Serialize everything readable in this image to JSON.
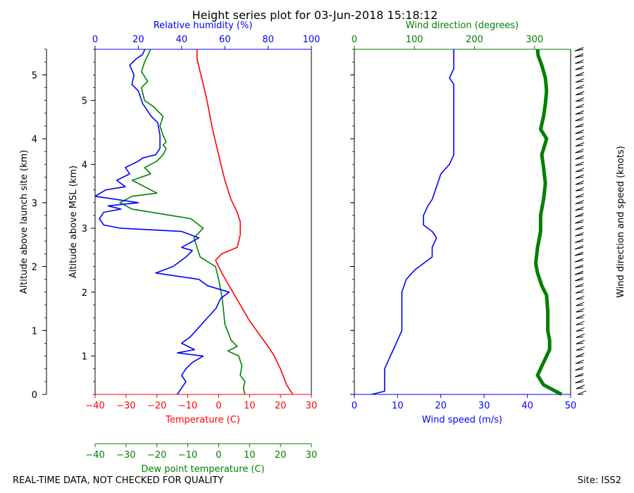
{
  "title": "Height series plot for 03-Jun-2018 15:18:12",
  "footer": {
    "left": "REAL-TIME DATA, NOT CHECKED FOR QUALITY",
    "right": "Site: ISS2"
  },
  "colors": {
    "temperature": "#ff0000",
    "dewpoint": "#008000",
    "humidity": "#0000ff",
    "wind_speed": "#0000ff",
    "wind_direction": "#008000",
    "barbs": "#000000"
  },
  "chart_data": [
    {
      "type": "line",
      "panel": "thermo",
      "axes": {
        "left_outer": {
          "label": "Altitude above launch site (km)",
          "range": [
            0,
            5.4
          ],
          "ticks": [
            0,
            1,
            2,
            3,
            4,
            5
          ],
          "tick_labels": [
            "0",
            "1",
            "2",
            "3",
            "4",
            "5"
          ]
        },
        "left_inner": {
          "label": "Altitude above MSL (km)",
          "range": [
            0.4,
            5.8
          ],
          "ticks": [
            1,
            2,
            3,
            4,
            5
          ],
          "tick_labels": [
            "1",
            "2",
            "3",
            "4",
            "5"
          ]
        },
        "bottom": {
          "label": "Temperature (C)",
          "range": [
            -40,
            30
          ],
          "ticks": [
            -40,
            -30,
            -20,
            -10,
            0,
            10,
            20,
            30
          ],
          "tick_labels": [
            "−40",
            "−30",
            "−20",
            "−10",
            "0",
            "10",
            "20",
            "30"
          ]
        },
        "bottom2": {
          "label": "Dew point temperature (C)",
          "range": [
            -40,
            30
          ],
          "ticks": [
            -40,
            -30,
            -20,
            -10,
            0,
            10,
            20,
            30
          ],
          "tick_labels": [
            "−40",
            "−30",
            "−20",
            "−10",
            "0",
            "10",
            "20",
            "30"
          ]
        },
        "top": {
          "label": "Relative humidity (%)",
          "range": [
            0,
            100
          ],
          "ticks": [
            0,
            20,
            40,
            60,
            80,
            100
          ],
          "tick_labels": [
            "0",
            "20",
            "40",
            "60",
            "80",
            "100"
          ]
        }
      },
      "series": [
        {
          "name": "Temperature",
          "axis": "temp",
          "points": [
            [
              24,
              0
            ],
            [
              22,
              0.15
            ],
            [
              20,
              0.4
            ],
            [
              18,
              0.6
            ],
            [
              16,
              0.75
            ],
            [
              13,
              0.95
            ],
            [
              10,
              1.15
            ],
            [
              7,
              1.4
            ],
            [
              4,
              1.65
            ],
            [
              1,
              1.9
            ],
            [
              -1,
              2.1
            ],
            [
              1,
              2.2
            ],
            [
              6,
              2.3
            ],
            [
              7,
              2.5
            ],
            [
              7,
              2.7
            ],
            [
              6,
              2.85
            ],
            [
              4,
              3.05
            ],
            [
              2,
              3.35
            ],
            [
              1,
              3.55
            ],
            [
              0,
              3.75
            ],
            [
              -1,
              3.95
            ],
            [
              -2,
              4.15
            ],
            [
              -3,
              4.4
            ],
            [
              -4,
              4.65
            ],
            [
              -5,
              4.85
            ],
            [
              -6,
              5.05
            ],
            [
              -7,
              5.25
            ],
            [
              -7,
              5.4
            ]
          ]
        },
        {
          "name": "Dew point temperature",
          "axis": "temp",
          "points": [
            [
              8.5,
              0
            ],
            [
              8,
              0.1
            ],
            [
              8.5,
              0.2
            ],
            [
              7,
              0.3
            ],
            [
              7.5,
              0.45
            ],
            [
              6.5,
              0.6
            ],
            [
              3,
              0.68
            ],
            [
              6,
              0.75
            ],
            [
              4,
              0.85
            ],
            [
              2,
              1.1
            ],
            [
              1.5,
              1.35
            ],
            [
              1,
              1.55
            ],
            [
              0,
              1.8
            ],
            [
              -1,
              2.0
            ],
            [
              -6,
              2.15
            ],
            [
              -7,
              2.3
            ],
            [
              -8,
              2.45
            ],
            [
              -5,
              2.6
            ],
            [
              -9,
              2.75
            ],
            [
              -28,
              2.9
            ],
            [
              -32,
              3.0
            ],
            [
              -28,
              3.1
            ],
            [
              -20,
              3.15
            ],
            [
              -24,
              3.25
            ],
            [
              -28,
              3.35
            ],
            [
              -22,
              3.45
            ],
            [
              -24,
              3.55
            ],
            [
              -20,
              3.65
            ],
            [
              -18,
              3.75
            ],
            [
              -17,
              3.85
            ],
            [
              -18,
              3.9
            ],
            [
              -17,
              3.95
            ],
            [
              -18,
              4.05
            ],
            [
              -19,
              4.2
            ],
            [
              -18,
              4.35
            ],
            [
              -21,
              4.5
            ],
            [
              -24,
              4.6
            ],
            [
              -25,
              4.8
            ],
            [
              -23,
              4.9
            ],
            [
              -25,
              5.05
            ],
            [
              -24,
              5.2
            ],
            [
              -23,
              5.3
            ],
            [
              -22,
              5.4
            ]
          ]
        },
        {
          "name": "Relative humidity",
          "axis": "rh",
          "points": [
            [
              38,
              0
            ],
            [
              40,
              0.1
            ],
            [
              42,
              0.2
            ],
            [
              40,
              0.3
            ],
            [
              42,
              0.4
            ],
            [
              45,
              0.5
            ],
            [
              50,
              0.6
            ],
            [
              38,
              0.65
            ],
            [
              46,
              0.7
            ],
            [
              40,
              0.8
            ],
            [
              44,
              0.9
            ],
            [
              48,
              1.05
            ],
            [
              52,
              1.2
            ],
            [
              56,
              1.35
            ],
            [
              58,
              1.5
            ],
            [
              62,
              1.6
            ],
            [
              52,
              1.7
            ],
            [
              48,
              1.8
            ],
            [
              28,
              1.9
            ],
            [
              36,
              2.0
            ],
            [
              42,
              2.15
            ],
            [
              45,
              2.25
            ],
            [
              40,
              2.3
            ],
            [
              48,
              2.45
            ],
            [
              40,
              2.55
            ],
            [
              12,
              2.6
            ],
            [
              4,
              2.65
            ],
            [
              2,
              2.75
            ],
            [
              4,
              2.85
            ],
            [
              12,
              2.9
            ],
            [
              6,
              2.95
            ],
            [
              20,
              3.0
            ],
            [
              0,
              3.1
            ],
            [
              5,
              3.2
            ],
            [
              14,
              3.25
            ],
            [
              10,
              3.35
            ],
            [
              16,
              3.45
            ],
            [
              14,
              3.55
            ],
            [
              20,
              3.65
            ],
            [
              22,
              3.7
            ],
            [
              28,
              3.75
            ],
            [
              30,
              3.85
            ],
            [
              30,
              4.05
            ],
            [
              29,
              4.25
            ],
            [
              26,
              4.35
            ],
            [
              24,
              4.45
            ],
            [
              22,
              4.55
            ],
            [
              20,
              4.75
            ],
            [
              17,
              4.85
            ],
            [
              18,
              5.0
            ],
            [
              16,
              5.15
            ],
            [
              19,
              5.25
            ],
            [
              22,
              5.32
            ],
            [
              23,
              5.4
            ]
          ]
        }
      ]
    },
    {
      "type": "line",
      "panel": "wind",
      "axes": {
        "bottom": {
          "label": "Wind speed (m/s)",
          "range": [
            0,
            50
          ],
          "ticks": [
            0,
            10,
            20,
            30,
            40,
            50
          ],
          "tick_labels": [
            "0",
            "10",
            "20",
            "30",
            "40",
            "50"
          ]
        },
        "top": {
          "label": "Wind direction (degrees)",
          "range": [
            0,
            360
          ],
          "ticks": [
            0,
            100,
            200,
            300
          ],
          "tick_labels": [
            "0",
            "100",
            "200",
            "300"
          ]
        },
        "right": {
          "label": "Wind direction and speed (knots)"
        }
      },
      "series": [
        {
          "name": "Wind speed",
          "axis": "ws",
          "points": [
            [
              4,
              0
            ],
            [
              7,
              0.05
            ],
            [
              7,
              0.15
            ],
            [
              7,
              0.4
            ],
            [
              8,
              0.55
            ],
            [
              9,
              0.7
            ],
            [
              10,
              0.85
            ],
            [
              11,
              1.0
            ],
            [
              11,
              1.3
            ],
            [
              11,
              1.6
            ],
            [
              12,
              1.8
            ],
            [
              14,
              1.95
            ],
            [
              16,
              2.05
            ],
            [
              18,
              2.15
            ],
            [
              18,
              2.3
            ],
            [
              19,
              2.45
            ],
            [
              18,
              2.55
            ],
            [
              16,
              2.65
            ],
            [
              16,
              2.8
            ],
            [
              17,
              2.95
            ],
            [
              18,
              3.05
            ],
            [
              19,
              3.25
            ],
            [
              20,
              3.45
            ],
            [
              22,
              3.6
            ],
            [
              23,
              3.75
            ],
            [
              23,
              3.9
            ],
            [
              23,
              4.1
            ],
            [
              23,
              4.3
            ],
            [
              23,
              4.5
            ],
            [
              23,
              4.7
            ],
            [
              23,
              4.85
            ],
            [
              22,
              4.95
            ],
            [
              23,
              5.1
            ],
            [
              23,
              5.3
            ],
            [
              23,
              5.4
            ]
          ]
        },
        {
          "name": "Wind direction",
          "axis": "wd",
          "points": [
            [
              345,
              0
            ],
            [
              335,
              0.05
            ],
            [
              315,
              0.15
            ],
            [
              305,
              0.3
            ],
            [
              315,
              0.5
            ],
            [
              325,
              0.7
            ],
            [
              325,
              0.85
            ],
            [
              322,
              1.0
            ],
            [
              322,
              1.3
            ],
            [
              320,
              1.55
            ],
            [
              312,
              1.7
            ],
            [
              305,
              1.9
            ],
            [
              302,
              2.05
            ],
            [
              305,
              2.3
            ],
            [
              310,
              2.55
            ],
            [
              310,
              2.8
            ],
            [
              315,
              3.05
            ],
            [
              318,
              3.3
            ],
            [
              315,
              3.55
            ],
            [
              312,
              3.75
            ],
            [
              320,
              4.0
            ],
            [
              310,
              4.15
            ],
            [
              315,
              4.35
            ],
            [
              318,
              4.55
            ],
            [
              320,
              4.75
            ],
            [
              318,
              4.95
            ],
            [
              312,
              5.15
            ],
            [
              306,
              5.3
            ],
            [
              305,
              5.4
            ]
          ]
        }
      ]
    }
  ]
}
